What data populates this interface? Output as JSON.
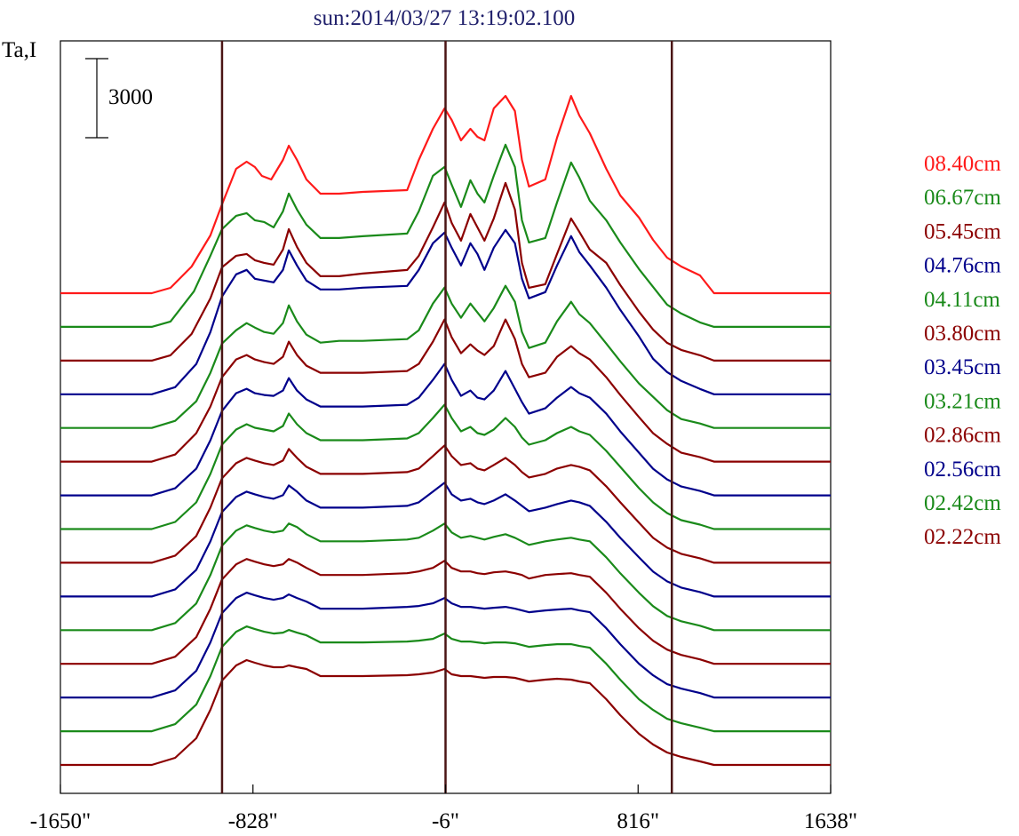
{
  "chart_data": {
    "type": "line",
    "title": "sun:2014/03/27 13:19:02.100",
    "ylabel": "Ta,I",
    "scale_bar_label": "3000",
    "x_ticks": [
      {
        "value": -1650,
        "label": "-1650\""
      },
      {
        "value": -828,
        "label": "-828\""
      },
      {
        "value": -6,
        "label": "-6\""
      },
      {
        "value": 816,
        "label": "816\""
      },
      {
        "value": 1638,
        "label": "1638\""
      }
    ],
    "xlim": [
      -1650,
      1638
    ],
    "grid": false,
    "vertical_markers": [
      -960,
      -6,
      960
    ],
    "legend_position": "right",
    "series": [
      {
        "name": "08.40cm",
        "color": "#ff1a1a"
      },
      {
        "name": "06.67cm",
        "color": "#1a8a1a"
      },
      {
        "name": "05.45cm",
        "color": "#8b0000"
      },
      {
        "name": "04.76cm",
        "color": "#00008b"
      },
      {
        "name": "04.11cm",
        "color": "#1a8a1a"
      },
      {
        "name": "03.80cm",
        "color": "#8b0000"
      },
      {
        "name": "03.45cm",
        "color": "#00008b"
      },
      {
        "name": "03.21cm",
        "color": "#1a8a1a"
      },
      {
        "name": "02.86cm",
        "color": "#8b0000"
      },
      {
        "name": "02.56cm",
        "color": "#00008b"
      },
      {
        "name": "02.42cm",
        "color": "#1a8a1a"
      },
      {
        "name": "02.22cm",
        "color": "#8b0000"
      },
      {
        "name": "",
        "color": "#00008b"
      },
      {
        "name": "",
        "color": "#1a8a1a"
      },
      {
        "name": "",
        "color": "#8b0000"
      }
    ]
  },
  "colors": {
    "title": "#1f1f6b",
    "marker_line": "#4a1515",
    "frame": "#000000"
  }
}
